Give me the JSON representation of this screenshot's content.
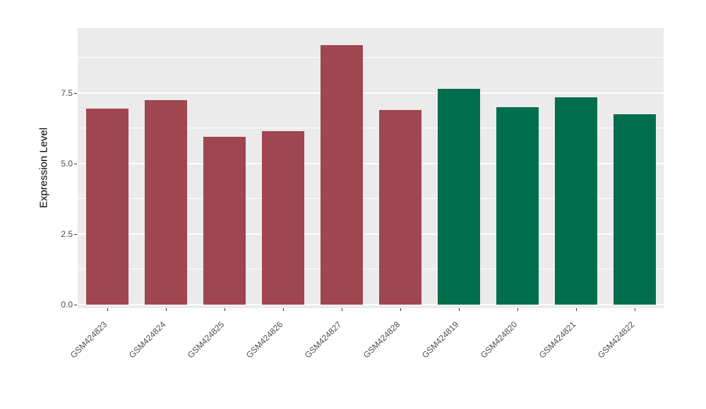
{
  "figure": {
    "background": "#FFFFFF",
    "panel_background": "#EBEBEB",
    "gridline_color": "#FFFFFF",
    "axis_text_color": "#4D4D4D",
    "tick_color": "#333333"
  },
  "chart_data": {
    "type": "bar",
    "title": "",
    "xlabel": "",
    "ylabel": "Expression Level",
    "categories": [
      "GSM424823",
      "GSM424824",
      "GSM424825",
      "GSM424826",
      "GSM424827",
      "GSM424828",
      "GSM424819",
      "GSM424820",
      "GSM424821",
      "GSM424822"
    ],
    "values": [
      6.95,
      7.25,
      5.95,
      6.15,
      9.2,
      6.9,
      7.65,
      7.0,
      7.35,
      6.75
    ],
    "colors": [
      "#A04651",
      "#A04651",
      "#A04651",
      "#A04651",
      "#A04651",
      "#A04651",
      "#006E4C",
      "#006E4C",
      "#006E4C",
      "#006E4C"
    ],
    "ylim": [
      0,
      9.8
    ],
    "yticks": [
      0,
      2.5,
      5,
      7.5
    ],
    "ytick_labels": [
      "0.0",
      "2.5",
      "5.0",
      "7.5"
    ],
    "minor_gridlines": [
      1.25,
      3.75,
      6.25,
      8.75
    ],
    "grid": true,
    "legend": "none"
  }
}
